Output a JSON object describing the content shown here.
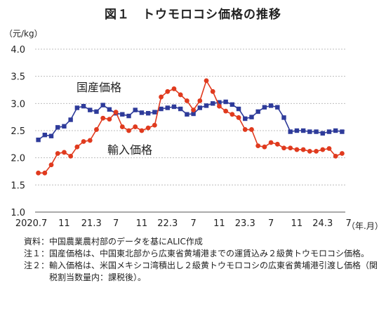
{
  "chart_data": {
    "type": "line",
    "title": "図１　トウモロコシ価格の推移",
    "ylabel": "（元/kg）",
    "xlabel": "（年.月）",
    "ylim": [
      1.0,
      4.0
    ],
    "yticks": [
      "4.0",
      "3.5",
      "3.0",
      "2.5",
      "2.0",
      "1.5",
      "1.0"
    ],
    "x_tick_labels": [
      "2020.7",
      "11",
      "21.3",
      "7",
      "11",
      "22.3",
      "7",
      "11",
      "23.3",
      "7",
      "11",
      "24.3",
      "7"
    ],
    "grid": true,
    "series": [
      {
        "name": "国産価格",
        "color": "#2e3b9a",
        "marker": "square",
        "values": [
          2.33,
          2.42,
          2.4,
          2.56,
          2.58,
          2.7,
          2.92,
          2.95,
          2.88,
          2.85,
          2.97,
          2.89,
          2.82,
          2.8,
          2.77,
          2.88,
          2.83,
          2.82,
          2.84,
          2.9,
          2.92,
          2.94,
          2.9,
          2.8,
          2.81,
          2.92,
          2.96,
          3.0,
          3.02,
          3.03,
          2.98,
          2.9,
          2.72,
          2.75,
          2.85,
          2.93,
          2.96,
          2.93,
          2.74,
          2.48,
          2.5,
          2.5,
          2.48,
          2.48,
          2.45,
          2.48,
          2.5,
          2.48
        ]
      },
      {
        "name": "輸入価格",
        "color": "#e03a1e",
        "marker": "circle",
        "values": [
          1.72,
          1.72,
          1.87,
          2.08,
          2.1,
          2.03,
          2.2,
          2.3,
          2.32,
          2.52,
          2.73,
          2.71,
          2.84,
          2.57,
          2.5,
          2.57,
          2.5,
          2.55,
          2.6,
          3.12,
          3.22,
          3.27,
          3.16,
          3.05,
          2.88,
          3.05,
          3.42,
          3.22,
          2.95,
          2.86,
          2.8,
          2.74,
          2.52,
          2.52,
          2.22,
          2.2,
          2.28,
          2.25,
          2.18,
          2.18,
          2.15,
          2.15,
          2.12,
          2.12,
          2.15,
          2.17,
          2.03,
          2.08
        ]
      }
    ]
  },
  "labels": {
    "domestic": "国産価格",
    "import": "輸入価格"
  },
  "notes": [
    {
      "key": "資料：",
      "text": "中国農業農村部のデータを基にALIC作成"
    },
    {
      "key": "注１：",
      "text": "国産価格は、中国東北部から広東省黄埔港までの運賃込み２級黄トウモロコシ価格。"
    },
    {
      "key": "注２：",
      "text": "輸入価格は、米国メキシコ湾積出し２級黄トウモロコシの広東省黄埔港引渡し価格（関税割当数量内：課税後）。"
    }
  ]
}
